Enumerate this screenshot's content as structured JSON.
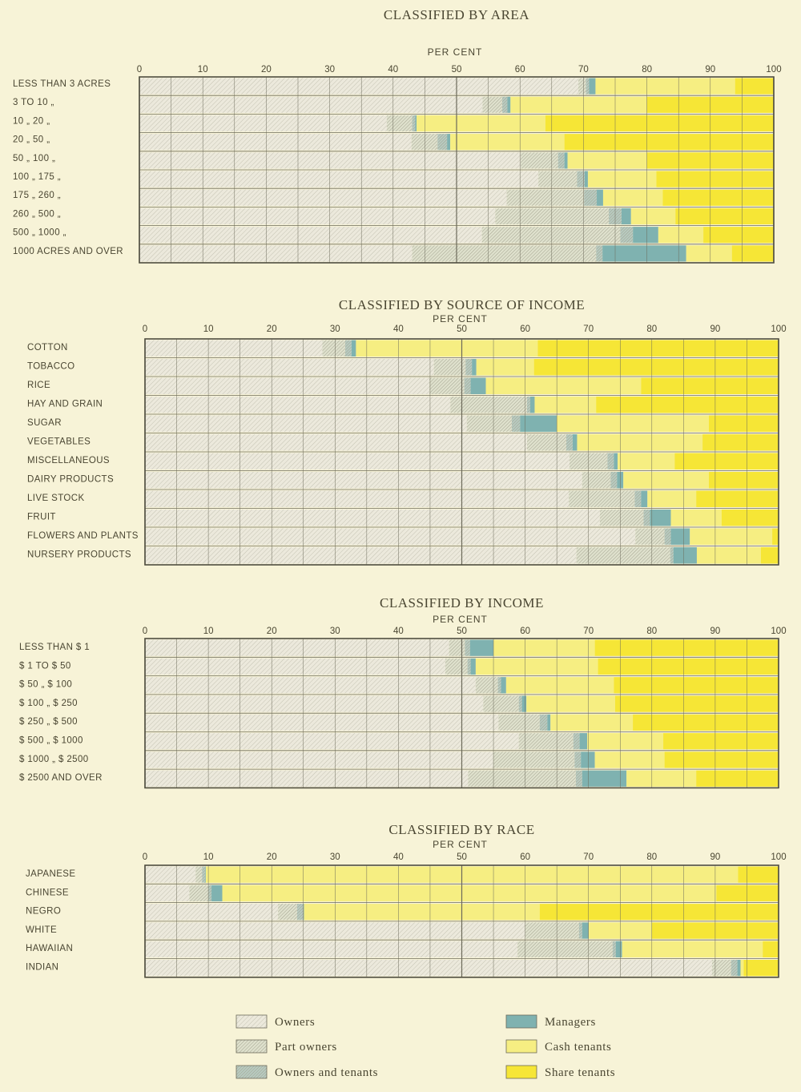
{
  "legend": [
    {
      "key": "owners",
      "label": "Owners"
    },
    {
      "key": "part_owners",
      "label": "Part owners"
    },
    {
      "key": "owners_tenants",
      "label": "Owners and tenants"
    },
    {
      "key": "managers",
      "label": "Managers"
    },
    {
      "key": "cash",
      "label": "Cash tenants"
    },
    {
      "key": "share",
      "label": "Share tenants"
    }
  ],
  "colors": {
    "owners": "#ece9dc",
    "part_owners": "#dfe1cd",
    "owners_tenants": "#b8cbc1",
    "managers": "#7fb2b0",
    "cash": "#f6ee82",
    "share": "#f6e636",
    "grid": "#6c6a5a",
    "hatch": "#9c9c88"
  },
  "chart_data": [
    {
      "type": "bar",
      "orientation": "horizontal",
      "stacked": true,
      "title": "CLASSIFIED BY AREA",
      "xlabel": "PER CENT",
      "xlim": [
        0,
        100
      ],
      "xticks": [
        "0",
        "10",
        "20",
        "30",
        "40",
        "50",
        "60",
        "70",
        "80",
        "90",
        "100"
      ],
      "categories": [
        "LESS THAN 3 ACRES",
        "3 TO 10 „",
        "10 „ 20 „",
        "20 „ 50 „",
        "50 „ 100 „",
        "100 „ 175 „",
        "175 „ 260 „",
        "260 „ 500 „",
        "500 „ 1000 „",
        "1000 ACRES AND OVER"
      ],
      "series": [
        {
          "name": "Owners",
          "values": [
            69.2,
            54.1,
            39.0,
            42.9,
            60.1,
            62.9,
            57.9,
            56.1,
            54.0,
            43.0
          ]
        },
        {
          "name": "Part owners",
          "values": [
            1.2,
            3.1,
            4.0,
            4.1,
            5.9,
            6.1,
            12.2,
            17.9,
            21.8,
            29.0
          ]
        },
        {
          "name": "Owners and tenants",
          "values": [
            0.5,
            0.8,
            0.5,
            1.5,
            1.0,
            1.2,
            2.0,
            2.0,
            2.0,
            1.0
          ]
        },
        {
          "name": "Managers",
          "values": [
            1.0,
            0.5,
            0.2,
            0.5,
            0.5,
            0.5,
            1.0,
            1.5,
            4.0,
            13.2
          ]
        },
        {
          "name": "Cash tenants",
          "values": [
            22.0,
            21.5,
            20.3,
            18.0,
            12.5,
            10.8,
            9.4,
            7.0,
            7.1,
            7.2
          ]
        },
        {
          "name": "Share tenants",
          "values": [
            6.1,
            20.0,
            36.0,
            33.0,
            20.0,
            18.5,
            17.5,
            15.5,
            11.1,
            6.6
          ]
        }
      ]
    },
    {
      "type": "bar",
      "orientation": "horizontal",
      "stacked": true,
      "title": "CLASSIFIED BY SOURCE OF INCOME",
      "xlabel": "PER CENT",
      "xlim": [
        0,
        100
      ],
      "xticks": [
        "0",
        "10",
        "20",
        "30",
        "40",
        "50",
        "60",
        "70",
        "80",
        "90",
        "100"
      ],
      "categories": [
        "COTTON",
        "TOBACCO",
        "RICE",
        "HAY AND GRAIN",
        "SUGAR",
        "VEGETABLES",
        "MISCELLANEOUS",
        "DAIRY PRODUCTS",
        "LIVE STOCK",
        "FRUIT",
        "FLOWERS AND PLANTS",
        "NURSERY PRODUCTS"
      ],
      "series": [
        {
          "name": "Owners",
          "values": [
            28.0,
            45.6,
            44.9,
            48.2,
            50.8,
            60.3,
            67.0,
            69.0,
            66.9,
            71.8,
            77.4,
            68.1
          ]
        },
        {
          "name": "Part owners",
          "values": [
            3.6,
            5.0,
            5.5,
            12.1,
            7.1,
            6.2,
            6.0,
            4.5,
            10.4,
            6.9,
            4.6,
            14.8
          ]
        },
        {
          "name": "Owners and tenants",
          "values": [
            1.0,
            1.0,
            1.0,
            0.5,
            1.3,
            1.0,
            1.0,
            1.0,
            1.0,
            1.0,
            1.0,
            0.5
          ]
        },
        {
          "name": "Managers",
          "values": [
            0.7,
            0.7,
            2.4,
            0.7,
            5.8,
            0.7,
            0.6,
            1.0,
            1.0,
            3.3,
            3.0,
            3.7
          ]
        },
        {
          "name": "Cash tenants",
          "values": [
            28.7,
            9.1,
            24.5,
            9.7,
            24.0,
            19.8,
            9.0,
            13.5,
            7.7,
            8.0,
            13.0,
            10.1
          ]
        },
        {
          "name": "Share tenants",
          "values": [
            38.0,
            38.6,
            21.7,
            28.8,
            11.0,
            12.0,
            16.4,
            11.0,
            13.0,
            9.0,
            1.0,
            2.8
          ]
        }
      ]
    },
    {
      "type": "bar",
      "orientation": "horizontal",
      "stacked": true,
      "title": "CLASSIFIED BY INCOME",
      "xlabel": "PER CENT",
      "xlim": [
        0,
        100
      ],
      "xticks": [
        "0",
        "10",
        "20",
        "30",
        "40",
        "50",
        "60",
        "70",
        "80",
        "90",
        "100"
      ],
      "categories": [
        "LESS THAN $ 1",
        "$ 1 TO $ 50",
        "$ 50 „ $ 100",
        "$ 100 „ $ 250",
        "$ 250 „ $ 500",
        "$ 500 „ $ 1000",
        "$ 1000 „ $ 2500",
        "$ 2500 AND OVER"
      ],
      "series": [
        {
          "name": "Owners",
          "values": [
            48.0,
            47.4,
            52.2,
            53.4,
            55.8,
            59.0,
            55.0,
            51.0
          ]
        },
        {
          "name": "Part owners",
          "values": [
            2.5,
            3.5,
            3.5,
            5.6,
            6.5,
            8.6,
            12.8,
            17.0
          ]
        },
        {
          "name": "Owners and tenants",
          "values": [
            0.8,
            0.5,
            0.5,
            0.5,
            1.2,
            1.0,
            1.0,
            1.0
          ]
        },
        {
          "name": "Managers",
          "values": [
            3.7,
            0.8,
            0.8,
            0.7,
            0.5,
            1.2,
            2.2,
            7.0
          ]
        },
        {
          "name": "Cash tenants",
          "values": [
            16.0,
            19.3,
            17.0,
            14.0,
            13.0,
            12.0,
            11.0,
            11.0
          ]
        },
        {
          "name": "Share tenants",
          "values": [
            29.0,
            28.5,
            26.0,
            25.8,
            23.0,
            18.2,
            18.0,
            13.0
          ]
        }
      ]
    },
    {
      "type": "bar",
      "orientation": "horizontal",
      "stacked": true,
      "title": "CLASSIFIED BY RACE",
      "xlabel": "PER CENT",
      "xlim": [
        0,
        100
      ],
      "xticks": [
        "0",
        "10",
        "20",
        "30",
        "40",
        "50",
        "60",
        "70",
        "80",
        "90",
        "100"
      ],
      "categories": [
        "JAPANESE",
        "CHINESE",
        "NEGRO",
        "WHITE",
        "HAWAIIAN",
        "INDIAN"
      ],
      "series": [
        {
          "name": "Owners",
          "values": [
            8.0,
            7.0,
            21.0,
            60.0,
            58.8,
            89.5
          ]
        },
        {
          "name": "Part owners",
          "values": [
            1.0,
            3.0,
            3.0,
            8.5,
            15.0,
            3.0
          ]
        },
        {
          "name": "Owners and tenants",
          "values": [
            0.5,
            0.5,
            1.0,
            0.5,
            0.5,
            1.0
          ]
        },
        {
          "name": "Managers",
          "values": [
            0.1,
            1.7,
            0.1,
            1.0,
            1.0,
            0.5
          ]
        },
        {
          "name": "Cash tenants",
          "values": [
            84.0,
            78.0,
            37.2,
            10.0,
            22.2,
            0.5
          ]
        },
        {
          "name": "Share tenants",
          "values": [
            6.4,
            9.8,
            37.7,
            20.0,
            2.5,
            5.5
          ]
        }
      ]
    }
  ]
}
